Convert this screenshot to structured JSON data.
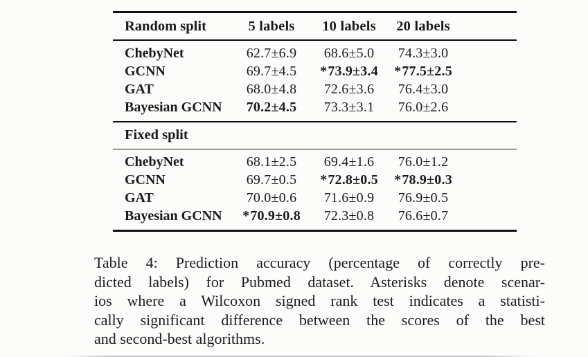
{
  "page": {
    "background_color": "#fcfcfb",
    "text_color": "#1a1a1a",
    "rule_color": "#101010"
  },
  "table": {
    "column_headers": [
      "5 labels",
      "10 labels",
      "20 labels"
    ],
    "sections": [
      {
        "name": "Random split",
        "rows": [
          {
            "model": "ChebyNet",
            "cells": [
              {
                "value": "62.7±6.9",
                "bold": false,
                "star": false
              },
              {
                "value": "68.6±5.0",
                "bold": false,
                "star": false
              },
              {
                "value": "74.3±3.0",
                "bold": false,
                "star": false
              }
            ]
          },
          {
            "model": "GCNN",
            "cells": [
              {
                "value": "69.7±4.5",
                "bold": false,
                "star": false
              },
              {
                "value": "73.9±3.4",
                "bold": true,
                "star": true
              },
              {
                "value": "77.5±2.5",
                "bold": true,
                "star": true
              }
            ]
          },
          {
            "model": "GAT",
            "cells": [
              {
                "value": "68.0±4.8",
                "bold": false,
                "star": false
              },
              {
                "value": "72.6±3.6",
                "bold": false,
                "star": false
              },
              {
                "value": "76.4±3.0",
                "bold": false,
                "star": false
              }
            ]
          },
          {
            "model": "Bayesian GCNN",
            "cells": [
              {
                "value": "70.2±4.5",
                "bold": true,
                "star": false
              },
              {
                "value": "73.3±3.1",
                "bold": false,
                "star": false
              },
              {
                "value": "76.0±2.6",
                "bold": false,
                "star": false
              }
            ]
          }
        ]
      },
      {
        "name": "Fixed split",
        "rows": [
          {
            "model": "ChebyNet",
            "cells": [
              {
                "value": "68.1±2.5",
                "bold": false,
                "star": false
              },
              {
                "value": "69.4±1.6",
                "bold": false,
                "star": false
              },
              {
                "value": "76.0±1.2",
                "bold": false,
                "star": false
              }
            ]
          },
          {
            "model": "GCNN",
            "cells": [
              {
                "value": "69.7±0.5",
                "bold": false,
                "star": false
              },
              {
                "value": "72.8±0.5",
                "bold": true,
                "star": true
              },
              {
                "value": "78.9±0.3",
                "bold": true,
                "star": true
              }
            ]
          },
          {
            "model": "GAT",
            "cells": [
              {
                "value": "70.0±0.6",
                "bold": false,
                "star": false
              },
              {
                "value": "71.6±0.9",
                "bold": false,
                "star": false
              },
              {
                "value": "76.9±0.5",
                "bold": false,
                "star": false
              }
            ]
          },
          {
            "model": "Bayesian GCNN",
            "cells": [
              {
                "value": "70.9±0.8",
                "bold": true,
                "star": true
              },
              {
                "value": "72.3±0.8",
                "bold": false,
                "star": false
              },
              {
                "value": "76.6±0.7",
                "bold": false,
                "star": false
              }
            ]
          }
        ]
      }
    ],
    "significance_marker": "*"
  },
  "caption": {
    "lines": [
      "Table 4: Prediction accuracy (percentage of correctly pre-",
      "dicted labels) for Pubmed dataset. Asterisks denote scenar-",
      "ios where a Wilcoxon signed rank test indicates a statisti-",
      "cally significant difference between the scores of the best",
      "and second-best algorithms."
    ],
    "full_text": "Table 4: Prediction accuracy (percentage of correctly predicted labels) for Pubmed dataset. Asterisks denote scenarios where a Wilcoxon signed rank test indicates a statistically significant difference between the scores of the best and second-best algorithms."
  }
}
